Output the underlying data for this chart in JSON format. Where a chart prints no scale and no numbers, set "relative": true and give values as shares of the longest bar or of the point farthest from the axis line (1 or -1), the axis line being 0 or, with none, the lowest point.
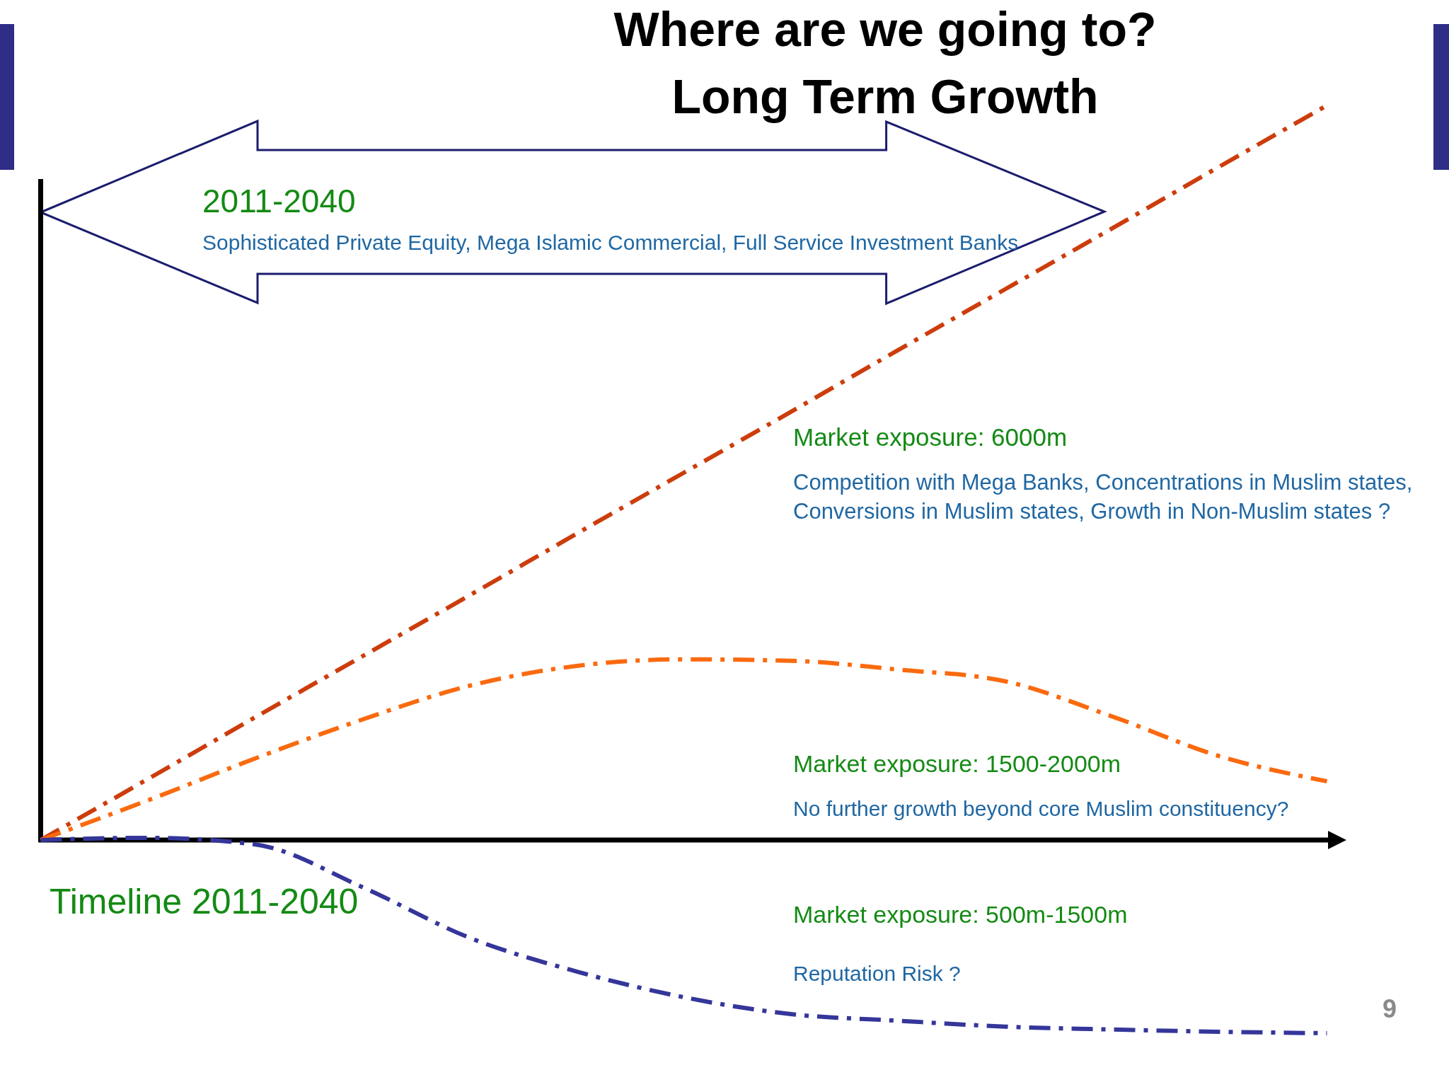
{
  "chart_data": {
    "type": "line",
    "title": "Where are we going to?",
    "subtitle": "Long Term Growth",
    "xlabel": "Timeline 2011-2040",
    "relative": true,
    "line_style": "dashdot",
    "categories": [
      null,
      null,
      null,
      null,
      null,
      null,
      null,
      null,
      null,
      null,
      null,
      null,
      null
    ],
    "series": [
      {
        "color": "#cc3d0c",
        "values": [
          0,
          0.083,
          0.167,
          0.25,
          0.333,
          0.417,
          0.5,
          0.583,
          0.667,
          0.75,
          0.833,
          0.917,
          1
        ]
      },
      {
        "color": "#fa6a0f",
        "values": [
          0,
          0.054,
          0.111,
          0.164,
          0.21,
          0.237,
          0.246,
          0.244,
          0.232,
          0.216,
          0.168,
          0.114,
          0.08
        ]
      },
      {
        "color": "#35369a",
        "values": [
          0,
          0.003,
          -0.006,
          -0.064,
          -0.133,
          -0.179,
          -0.214,
          -0.237,
          -0.246,
          -0.254,
          -0.258,
          -0.261,
          -0.263
        ]
      }
    ],
    "annotations": [
      "2011-2040",
      "Sophisticated Private Equity, Mega Islamic Commercial, Full Service Investment Banks",
      "Market exposure: 6000m",
      "Competition with Mega Banks, Concentrations in Muslim states,",
      "Conversions in Muslim states, Growth in Non-Muslim states ?",
      "Market exposure: 1500-2000m",
      "No further growth beyond core Muslim constituency?",
      "Market exposure: 500m-1500m",
      "Reputation Risk ?",
      "9"
    ]
  }
}
